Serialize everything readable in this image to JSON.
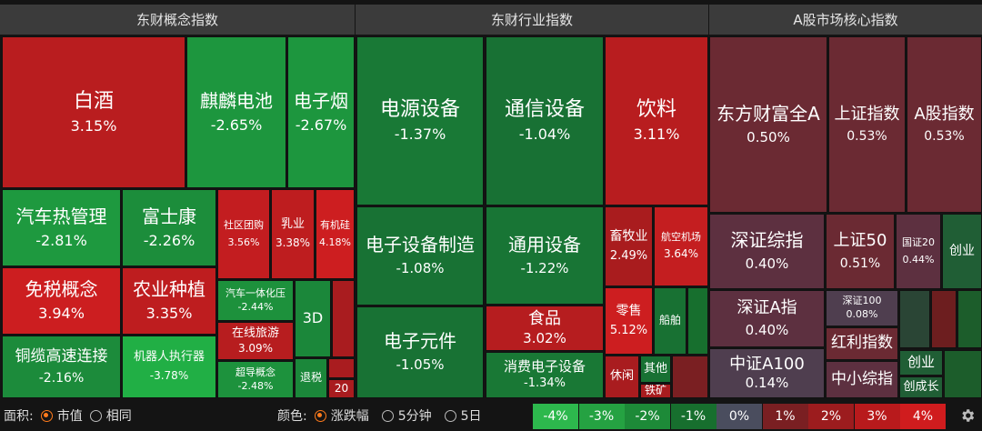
{
  "chart_data": {
    "type": "treemap",
    "sections": [
      {
        "title": "东财概念指数",
        "items": [
          {
            "name": "白酒",
            "pct": "3.15%",
            "value": 3.15
          },
          {
            "name": "麒麟电池",
            "pct": "-2.65%",
            "value": -2.65
          },
          {
            "name": "电子烟",
            "pct": "-2.67%",
            "value": -2.67
          },
          {
            "name": "汽车热管理",
            "pct": "-2.81%",
            "value": -2.81
          },
          {
            "name": "富士康",
            "pct": "-2.26%",
            "value": -2.26
          },
          {
            "name": "社区团购",
            "pct": "3.56%",
            "value": 3.56
          },
          {
            "name": "乳业",
            "pct": "3.38%",
            "value": 3.38
          },
          {
            "name": "有机硅",
            "pct": "4.18%",
            "value": 4.18
          },
          {
            "name": "免税概念",
            "pct": "3.94%",
            "value": 3.94
          },
          {
            "name": "农业种植",
            "pct": "3.35%",
            "value": 3.35
          },
          {
            "name": "汽车一体化压",
            "pct": "-2.44%",
            "value": -2.44
          },
          {
            "name": "在线旅游",
            "pct": "3.09%",
            "value": 3.09
          },
          {
            "name": "3D",
            "pct": "",
            "value": -2.0
          },
          {
            "name": "",
            "pct": "",
            "value": 2.5
          },
          {
            "name": "铜缆高速连接",
            "pct": "-2.16%",
            "value": -2.16
          },
          {
            "name": "机器人执行器",
            "pct": "-3.78%",
            "value": -3.78
          },
          {
            "name": "超导概念",
            "pct": "-2.48%",
            "value": -2.48
          },
          {
            "name": "退税",
            "pct": "",
            "value": -2.0
          },
          {
            "name": "",
            "pct": "",
            "value": 2.5
          },
          {
            "name": "20",
            "pct": "",
            "value": 2.5
          }
        ]
      },
      {
        "title": "东财行业指数",
        "items": [
          {
            "name": "电源设备",
            "pct": "-1.37%",
            "value": -1.37
          },
          {
            "name": "通信设备",
            "pct": "-1.04%",
            "value": -1.04
          },
          {
            "name": "饮料",
            "pct": "3.11%",
            "value": 3.11
          },
          {
            "name": "电子设备制造",
            "pct": "-1.08%",
            "value": -1.08
          },
          {
            "name": "通用设备",
            "pct": "-1.22%",
            "value": -1.22
          },
          {
            "name": "畜牧业",
            "pct": "2.49%",
            "value": 2.49
          },
          {
            "name": "航空机场",
            "pct": "3.64%",
            "value": 3.64
          },
          {
            "name": "食品",
            "pct": "3.02%",
            "value": 3.02
          },
          {
            "name": "电子元件",
            "pct": "-1.05%",
            "value": -1.05
          },
          {
            "name": "零售",
            "pct": "5.12%",
            "value": 5.12
          },
          {
            "name": "船舶",
            "pct": "",
            "value": -1.0
          },
          {
            "name": "消费电子设备",
            "pct": "-1.34%",
            "value": -1.34
          },
          {
            "name": "休闲",
            "pct": "",
            "value": 2.5
          },
          {
            "name": "其他",
            "pct": "",
            "value": -1.0
          },
          {
            "name": "铁矿",
            "pct": "",
            "value": 2.5
          }
        ]
      },
      {
        "title": "A股市场核心指数",
        "items": [
          {
            "name": "东方财富全A",
            "pct": "0.50%",
            "value": 0.5
          },
          {
            "name": "上证指数",
            "pct": "0.53%",
            "value": 0.53
          },
          {
            "name": "A股指数",
            "pct": "0.53%",
            "value": 0.53
          },
          {
            "name": "深证综指",
            "pct": "0.40%",
            "value": 0.4
          },
          {
            "name": "上证50",
            "pct": "0.51%",
            "value": 0.51
          },
          {
            "name": "国证20",
            "pct": "0.44%",
            "value": 0.44
          },
          {
            "name": "创业",
            "pct": "",
            "value": -0.3
          },
          {
            "name": "深证A指",
            "pct": "0.40%",
            "value": 0.4
          },
          {
            "name": "深证100",
            "pct": "0.08%",
            "value": 0.08
          },
          {
            "name": "红利指数",
            "pct": "",
            "value": 0.6
          },
          {
            "name": "中证A100",
            "pct": "0.14%",
            "value": 0.14
          },
          {
            "name": "创业",
            "pct": "",
            "value": -0.3
          },
          {
            "name": "中小综指",
            "pct": "",
            "value": 0.3
          },
          {
            "name": "创成长",
            "pct": "",
            "value": -0.3
          }
        ]
      }
    ]
  },
  "controls": {
    "area_label": "面积:",
    "area_options": [
      "市值",
      "相同"
    ],
    "area_selected": 0,
    "color_label": "颜色:",
    "color_options": [
      "涨跌幅",
      "5分钟",
      "5日"
    ],
    "color_selected": 0
  },
  "legend": {
    "labels": [
      "-4%",
      "-3%",
      "-2%",
      "-1%",
      "0%",
      "1%",
      "2%",
      "3%",
      "4%"
    ],
    "colors": [
      "#2db84d",
      "#25a242",
      "#1d8a38",
      "#176f2e",
      "#4a4d5e",
      "#7a1f22",
      "#9c1c1e",
      "#b81a1c",
      "#d01c1e"
    ]
  },
  "icons": {
    "settings": "gear-icon"
  }
}
